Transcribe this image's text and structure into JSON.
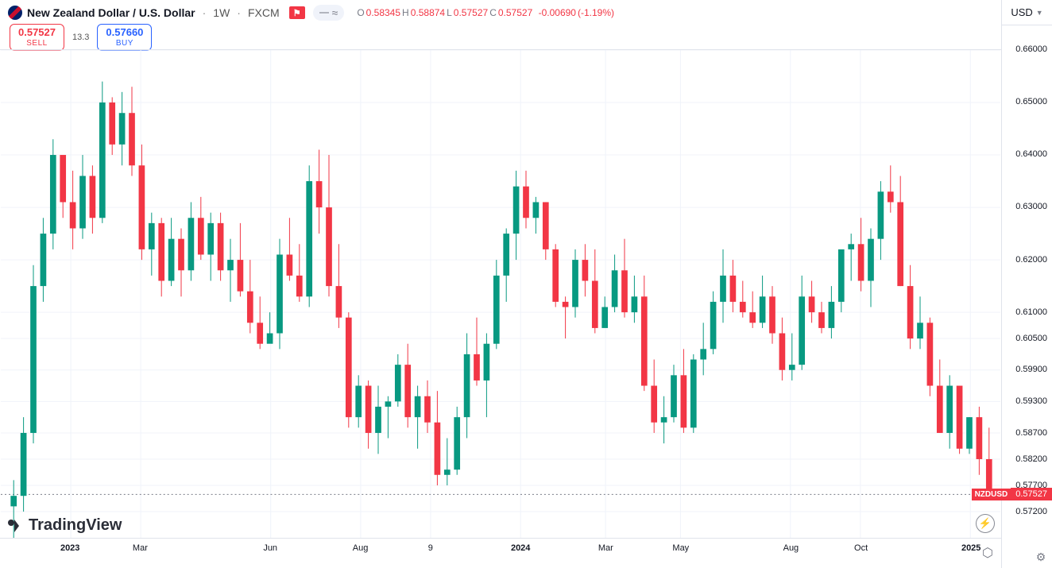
{
  "header": {
    "symbol_title": "New Zealand Dollar / U.S. Dollar",
    "timeframe": "1W",
    "broker": "FXCM",
    "ohlc": {
      "o_label": "O",
      "o": "0.58345",
      "h_label": "H",
      "h": "0.58874",
      "l_label": "L",
      "l": "0.57527",
      "c_label": "C",
      "c": "0.57527",
      "change": "-0.00690",
      "change_pct": "(-1.19%)"
    }
  },
  "trade": {
    "sell_price": "0.57527",
    "sell_label": "SELL",
    "spread": "13.3",
    "buy_price": "0.57660",
    "buy_label": "BUY"
  },
  "currency": "USD",
  "watermark": "TradingView",
  "chart": {
    "type": "candlestick",
    "bg": "#ffffff",
    "grid_color": "#f0f3fa",
    "up_color": "#089981",
    "dn_color": "#f23645",
    "border_color": "#787b86",
    "price_scale": {
      "ymin": 0.567,
      "ymax": 0.66,
      "ticks": [
        {
          "v": 0.66,
          "label": "0.66000"
        },
        {
          "v": 0.65,
          "label": "0.65000"
        },
        {
          "v": 0.64,
          "label": "0.64000"
        },
        {
          "v": 0.63,
          "label": "0.63000"
        },
        {
          "v": 0.62,
          "label": "0.62000"
        },
        {
          "v": 0.61,
          "label": "0.61000"
        },
        {
          "v": 0.605,
          "label": "0.60500"
        },
        {
          "v": 0.599,
          "label": "0.59900"
        },
        {
          "v": 0.593,
          "label": "0.59300"
        },
        {
          "v": 0.587,
          "label": "0.58700"
        },
        {
          "v": 0.582,
          "label": "0.58200"
        },
        {
          "v": 0.577,
          "label": "0.57700"
        },
        {
          "v": 0.572,
          "label": "0.57200"
        }
      ],
      "last_price": {
        "symbol": "NZDUSD",
        "value": "0.57527",
        "y": 0.57527
      }
    },
    "time_axis": [
      {
        "pos": 0.07,
        "label": "2023",
        "bold": true
      },
      {
        "pos": 0.14,
        "label": "Mar"
      },
      {
        "pos": 0.27,
        "label": "Jun"
      },
      {
        "pos": 0.36,
        "label": "Aug"
      },
      {
        "pos": 0.43,
        "label": "9"
      },
      {
        "pos": 0.52,
        "label": "2024",
        "bold": true
      },
      {
        "pos": 0.605,
        "label": "Mar"
      },
      {
        "pos": 0.68,
        "label": "May"
      },
      {
        "pos": 0.79,
        "label": "Aug"
      },
      {
        "pos": 0.86,
        "label": "Oct"
      },
      {
        "pos": 0.97,
        "label": "2025",
        "bold": true
      }
    ],
    "candles": [
      {
        "o": 0.573,
        "h": 0.578,
        "l": 0.559,
        "c": 0.575
      },
      {
        "o": 0.575,
        "h": 0.59,
        "l": 0.572,
        "c": 0.587
      },
      {
        "o": 0.587,
        "h": 0.619,
        "l": 0.585,
        "c": 0.615
      },
      {
        "o": 0.615,
        "h": 0.628,
        "l": 0.612,
        "c": 0.625
      },
      {
        "o": 0.625,
        "h": 0.643,
        "l": 0.622,
        "c": 0.64
      },
      {
        "o": 0.64,
        "h": 0.639,
        "l": 0.628,
        "c": 0.631
      },
      {
        "o": 0.631,
        "h": 0.637,
        "l": 0.622,
        "c": 0.626
      },
      {
        "o": 0.626,
        "h": 0.64,
        "l": 0.624,
        "c": 0.636
      },
      {
        "o": 0.636,
        "h": 0.638,
        "l": 0.625,
        "c": 0.628
      },
      {
        "o": 0.628,
        "h": 0.654,
        "l": 0.627,
        "c": 0.65
      },
      {
        "o": 0.65,
        "h": 0.651,
        "l": 0.64,
        "c": 0.642
      },
      {
        "o": 0.642,
        "h": 0.652,
        "l": 0.638,
        "c": 0.648
      },
      {
        "o": 0.648,
        "h": 0.653,
        "l": 0.636,
        "c": 0.638
      },
      {
        "o": 0.638,
        "h": 0.642,
        "l": 0.62,
        "c": 0.622
      },
      {
        "o": 0.622,
        "h": 0.629,
        "l": 0.617,
        "c": 0.627
      },
      {
        "o": 0.627,
        "h": 0.628,
        "l": 0.613,
        "c": 0.616
      },
      {
        "o": 0.616,
        "h": 0.628,
        "l": 0.615,
        "c": 0.624
      },
      {
        "o": 0.624,
        "h": 0.626,
        "l": 0.613,
        "c": 0.618
      },
      {
        "o": 0.618,
        "h": 0.631,
        "l": 0.616,
        "c": 0.628
      },
      {
        "o": 0.628,
        "h": 0.632,
        "l": 0.62,
        "c": 0.621
      },
      {
        "o": 0.621,
        "h": 0.629,
        "l": 0.616,
        "c": 0.627
      },
      {
        "o": 0.627,
        "h": 0.629,
        "l": 0.616,
        "c": 0.618
      },
      {
        "o": 0.618,
        "h": 0.624,
        "l": 0.612,
        "c": 0.62
      },
      {
        "o": 0.62,
        "h": 0.627,
        "l": 0.613,
        "c": 0.614
      },
      {
        "o": 0.614,
        "h": 0.62,
        "l": 0.606,
        "c": 0.608
      },
      {
        "o": 0.608,
        "h": 0.613,
        "l": 0.603,
        "c": 0.604
      },
      {
        "o": 0.604,
        "h": 0.61,
        "l": 0.605,
        "c": 0.606
      },
      {
        "o": 0.606,
        "h": 0.624,
        "l": 0.603,
        "c": 0.621
      },
      {
        "o": 0.621,
        "h": 0.628,
        "l": 0.616,
        "c": 0.617
      },
      {
        "o": 0.617,
        "h": 0.623,
        "l": 0.612,
        "c": 0.613
      },
      {
        "o": 0.613,
        "h": 0.638,
        "l": 0.611,
        "c": 0.635
      },
      {
        "o": 0.635,
        "h": 0.641,
        "l": 0.625,
        "c": 0.63
      },
      {
        "o": 0.63,
        "h": 0.64,
        "l": 0.613,
        "c": 0.615
      },
      {
        "o": 0.615,
        "h": 0.623,
        "l": 0.607,
        "c": 0.609
      },
      {
        "o": 0.609,
        "h": 0.61,
        "l": 0.588,
        "c": 0.59
      },
      {
        "o": 0.59,
        "h": 0.598,
        "l": 0.588,
        "c": 0.596
      },
      {
        "o": 0.596,
        "h": 0.597,
        "l": 0.584,
        "c": 0.587
      },
      {
        "o": 0.587,
        "h": 0.596,
        "l": 0.583,
        "c": 0.592
      },
      {
        "o": 0.592,
        "h": 0.594,
        "l": 0.586,
        "c": 0.593
      },
      {
        "o": 0.593,
        "h": 0.602,
        "l": 0.592,
        "c": 0.6
      },
      {
        "o": 0.6,
        "h": 0.604,
        "l": 0.588,
        "c": 0.59
      },
      {
        "o": 0.59,
        "h": 0.596,
        "l": 0.584,
        "c": 0.594
      },
      {
        "o": 0.594,
        "h": 0.597,
        "l": 0.587,
        "c": 0.589
      },
      {
        "o": 0.589,
        "h": 0.595,
        "l": 0.577,
        "c": 0.579
      },
      {
        "o": 0.579,
        "h": 0.586,
        "l": 0.577,
        "c": 0.58
      },
      {
        "o": 0.58,
        "h": 0.592,
        "l": 0.579,
        "c": 0.59
      },
      {
        "o": 0.59,
        "h": 0.606,
        "l": 0.586,
        "c": 0.602
      },
      {
        "o": 0.602,
        "h": 0.609,
        "l": 0.596,
        "c": 0.597
      },
      {
        "o": 0.597,
        "h": 0.606,
        "l": 0.59,
        "c": 0.604
      },
      {
        "o": 0.604,
        "h": 0.62,
        "l": 0.603,
        "c": 0.617
      },
      {
        "o": 0.617,
        "h": 0.626,
        "l": 0.612,
        "c": 0.625
      },
      {
        "o": 0.625,
        "h": 0.637,
        "l": 0.62,
        "c": 0.634
      },
      {
        "o": 0.634,
        "h": 0.637,
        "l": 0.626,
        "c": 0.628
      },
      {
        "o": 0.628,
        "h": 0.632,
        "l": 0.625,
        "c": 0.631
      },
      {
        "o": 0.631,
        "h": 0.631,
        "l": 0.62,
        "c": 0.622
      },
      {
        "o": 0.622,
        "h": 0.623,
        "l": 0.611,
        "c": 0.612
      },
      {
        "o": 0.612,
        "h": 0.613,
        "l": 0.605,
        "c": 0.611
      },
      {
        "o": 0.611,
        "h": 0.622,
        "l": 0.609,
        "c": 0.62
      },
      {
        "o": 0.62,
        "h": 0.623,
        "l": 0.613,
        "c": 0.616
      },
      {
        "o": 0.616,
        "h": 0.622,
        "l": 0.606,
        "c": 0.607
      },
      {
        "o": 0.607,
        "h": 0.613,
        "l": 0.61,
        "c": 0.611
      },
      {
        "o": 0.611,
        "h": 0.621,
        "l": 0.61,
        "c": 0.618
      },
      {
        "o": 0.618,
        "h": 0.624,
        "l": 0.609,
        "c": 0.61
      },
      {
        "o": 0.61,
        "h": 0.617,
        "l": 0.608,
        "c": 0.613
      },
      {
        "o": 0.613,
        "h": 0.617,
        "l": 0.595,
        "c": 0.596
      },
      {
        "o": 0.596,
        "h": 0.601,
        "l": 0.587,
        "c": 0.589
      },
      {
        "o": 0.589,
        "h": 0.594,
        "l": 0.585,
        "c": 0.59
      },
      {
        "o": 0.59,
        "h": 0.6,
        "l": 0.589,
        "c": 0.598
      },
      {
        "o": 0.598,
        "h": 0.603,
        "l": 0.587,
        "c": 0.588
      },
      {
        "o": 0.588,
        "h": 0.602,
        "l": 0.587,
        "c": 0.601
      },
      {
        "o": 0.601,
        "h": 0.608,
        "l": 0.598,
        "c": 0.603
      },
      {
        "o": 0.603,
        "h": 0.614,
        "l": 0.602,
        "c": 0.612
      },
      {
        "o": 0.612,
        "h": 0.622,
        "l": 0.608,
        "c": 0.617
      },
      {
        "o": 0.617,
        "h": 0.62,
        "l": 0.61,
        "c": 0.612
      },
      {
        "o": 0.612,
        "h": 0.616,
        "l": 0.609,
        "c": 0.61
      },
      {
        "o": 0.61,
        "h": 0.614,
        "l": 0.607,
        "c": 0.608
      },
      {
        "o": 0.608,
        "h": 0.617,
        "l": 0.607,
        "c": 0.613
      },
      {
        "o": 0.613,
        "h": 0.615,
        "l": 0.604,
        "c": 0.606
      },
      {
        "o": 0.606,
        "h": 0.609,
        "l": 0.597,
        "c": 0.599
      },
      {
        "o": 0.599,
        "h": 0.606,
        "l": 0.597,
        "c": 0.6
      },
      {
        "o": 0.6,
        "h": 0.617,
        "l": 0.599,
        "c": 0.613
      },
      {
        "o": 0.613,
        "h": 0.616,
        "l": 0.608,
        "c": 0.61
      },
      {
        "o": 0.61,
        "h": 0.612,
        "l": 0.606,
        "c": 0.607
      },
      {
        "o": 0.607,
        "h": 0.615,
        "l": 0.605,
        "c": 0.612
      },
      {
        "o": 0.612,
        "h": 0.619,
        "l": 0.61,
        "c": 0.622
      },
      {
        "o": 0.622,
        "h": 0.625,
        "l": 0.616,
        "c": 0.623
      },
      {
        "o": 0.623,
        "h": 0.628,
        "l": 0.614,
        "c": 0.616
      },
      {
        "o": 0.616,
        "h": 0.626,
        "l": 0.611,
        "c": 0.624
      },
      {
        "o": 0.624,
        "h": 0.635,
        "l": 0.62,
        "c": 0.633
      },
      {
        "o": 0.633,
        "h": 0.638,
        "l": 0.629,
        "c": 0.631
      },
      {
        "o": 0.631,
        "h": 0.636,
        "l": 0.615,
        "c": 0.615
      },
      {
        "o": 0.615,
        "h": 0.619,
        "l": 0.603,
        "c": 0.605
      },
      {
        "o": 0.605,
        "h": 0.613,
        "l": 0.603,
        "c": 0.608
      },
      {
        "o": 0.608,
        "h": 0.609,
        "l": 0.594,
        "c": 0.596
      },
      {
        "o": 0.596,
        "h": 0.601,
        "l": 0.587,
        "c": 0.587
      },
      {
        "o": 0.587,
        "h": 0.598,
        "l": 0.584,
        "c": 0.596
      },
      {
        "o": 0.596,
        "h": 0.593,
        "l": 0.583,
        "c": 0.584
      },
      {
        "o": 0.584,
        "h": 0.59,
        "l": 0.583,
        "c": 0.59
      },
      {
        "o": 0.59,
        "h": 0.592,
        "l": 0.579,
        "c": 0.582
      },
      {
        "o": 0.582,
        "h": 0.588,
        "l": 0.575,
        "c": 0.575
      }
    ]
  }
}
